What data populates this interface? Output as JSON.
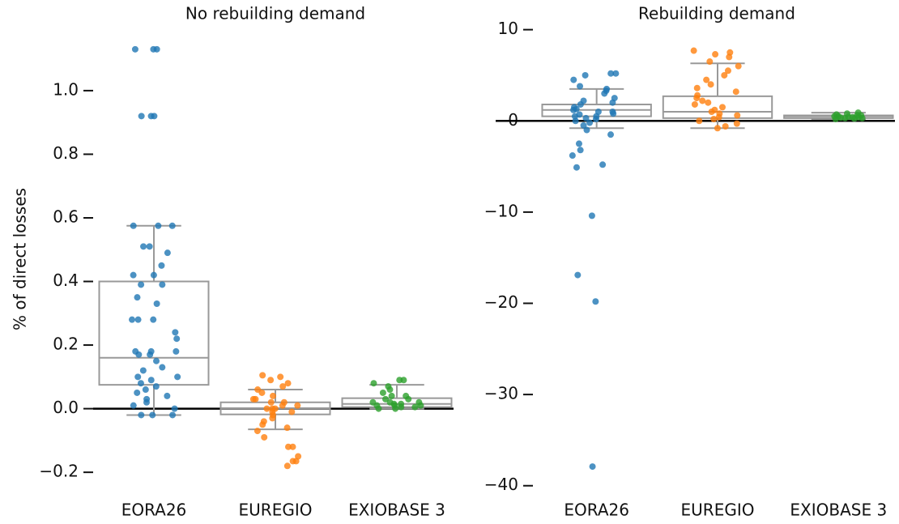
{
  "chart_data": [
    {
      "type": "box-strip",
      "title": "No rebuilding demand",
      "ylabel": "% of direct losses",
      "categories": [
        "EORA26",
        "EUREGIO",
        "EXIOBASE 3"
      ],
      "colors": [
        "#1f77b4",
        "#ff7f0e",
        "#2ca02c"
      ],
      "ylim": [
        -0.22,
        1.15
      ],
      "yticks": [
        {
          "value": -0.2,
          "label": "−0.2"
        },
        {
          "value": 0,
          "label": "0.0"
        },
        0.2,
        0.4,
        0.6,
        0.8,
        {
          "value": 1,
          "label": "1.0"
        }
      ],
      "boxes": [
        {
          "q1": 0.075,
          "median": 0.16,
          "q3": 0.4,
          "whislo": -0.02,
          "whishi": 0.575
        },
        {
          "q1": -0.018,
          "median": 0.0,
          "q3": 0.02,
          "whislo": -0.065,
          "whishi": 0.06
        },
        {
          "q1": 0.005,
          "median": 0.015,
          "q3": 0.033,
          "whislo": 0.0,
          "whishi": 0.075
        }
      ],
      "points": [
        [
          1.13,
          1.13,
          1.13,
          0.92,
          0.92,
          0.92,
          0.575,
          0.575,
          0.575,
          0.51,
          0.51,
          0.49,
          0.45,
          0.42,
          0.42,
          0.39,
          0.39,
          0.35,
          0.33,
          0.28,
          0.28,
          0.28,
          0.24,
          0.22,
          0.18,
          0.18,
          0.18,
          0.17,
          0.17,
          0.15,
          0.13,
          0.12,
          0.1,
          0.1,
          0.09,
          0.08,
          0.07,
          0.06,
          0.05,
          0.04,
          0.03,
          0.02,
          0.01,
          0.0,
          -0.02,
          -0.02,
          -0.02
        ],
        [
          0.105,
          0.1,
          0.09,
          0.08,
          0.07,
          0.06,
          0.05,
          0.04,
          0.03,
          0.03,
          0.02,
          0.02,
          0.01,
          0.01,
          0.0,
          0.0,
          0.0,
          -0.01,
          -0.01,
          -0.02,
          -0.03,
          -0.04,
          -0.05,
          -0.06,
          -0.07,
          -0.09,
          -0.12,
          -0.12,
          -0.15,
          -0.165,
          -0.165,
          -0.18
        ],
        [
          0.09,
          0.09,
          0.08,
          0.07,
          0.06,
          0.05,
          0.04,
          0.04,
          0.03,
          0.03,
          0.02,
          0.02,
          0.02,
          0.015,
          0.015,
          0.01,
          0.01,
          0.01,
          0.005,
          0.005,
          0.0,
          0.0
        ]
      ]
    },
    {
      "type": "box-strip",
      "title": "Rebuilding demand",
      "categories": [
        "EORA26",
        "EUREGIO",
        "EXIOBASE 3"
      ],
      "colors": [
        "#1f77b4",
        "#ff7f0e",
        "#2ca02c"
      ],
      "ylim": [
        -41,
        10.5
      ],
      "yticks": [
        {
          "value": -40,
          "label": "−40"
        },
        {
          "value": -30,
          "label": "−30"
        },
        {
          "value": -20,
          "label": "−20"
        },
        {
          "value": -10,
          "label": "−10"
        },
        0,
        10
      ],
      "boxes": [
        {
          "q1": 0.5,
          "median": 1.2,
          "q3": 1.8,
          "whislo": -0.8,
          "whishi": 3.5
        },
        {
          "q1": 0.3,
          "median": 1.0,
          "q3": 2.7,
          "whislo": -0.8,
          "whishi": 6.3
        },
        {
          "q1": 0.3,
          "median": 0.5,
          "q3": 0.6,
          "whislo": 0.2,
          "whishi": 0.9
        }
      ],
      "points": [
        [
          5.2,
          5.2,
          5.0,
          4.5,
          3.8,
          3.5,
          3.3,
          3.0,
          2.5,
          2.2,
          2.0,
          1.8,
          1.5,
          1.3,
          1.2,
          1.0,
          1.0,
          0.8,
          0.7,
          0.5,
          0.5,
          0.3,
          0.2,
          0.0,
          -0.2,
          -0.5,
          -1.0,
          -1.5,
          -2.5,
          -3.2,
          -3.8,
          -4.8,
          -5.1,
          -10.4,
          -16.9,
          -19.8,
          -37.9
        ],
        [
          7.7,
          7.5,
          7.3,
          7.0,
          6.5,
          6.0,
          5.5,
          5.0,
          4.5,
          4.0,
          3.6,
          3.2,
          2.8,
          2.5,
          2.2,
          2.0,
          1.8,
          1.5,
          1.2,
          1.0,
          0.8,
          0.6,
          0.4,
          0.2,
          0.0,
          -0.3,
          -0.6,
          -0.8
        ],
        [
          0.9,
          0.8,
          0.7,
          0.6,
          0.6,
          0.5,
          0.5,
          0.45,
          0.4,
          0.4,
          0.35,
          0.3,
          0.3,
          0.25,
          0.2
        ]
      ]
    }
  ]
}
